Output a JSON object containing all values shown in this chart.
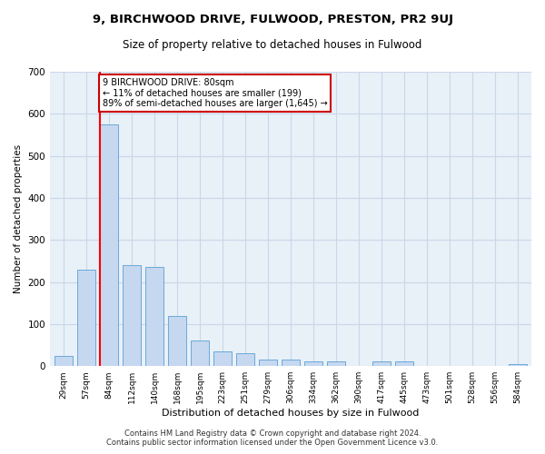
{
  "title": "9, BIRCHWOOD DRIVE, FULWOOD, PRESTON, PR2 9UJ",
  "subtitle": "Size of property relative to detached houses in Fulwood",
  "xlabel": "Distribution of detached houses by size in Fulwood",
  "ylabel": "Number of detached properties",
  "categories": [
    "29sqm",
    "57sqm",
    "84sqm",
    "112sqm",
    "140sqm",
    "168sqm",
    "195sqm",
    "223sqm",
    "251sqm",
    "279sqm",
    "306sqm",
    "334sqm",
    "362sqm",
    "390sqm",
    "417sqm",
    "445sqm",
    "473sqm",
    "501sqm",
    "528sqm",
    "556sqm",
    "584sqm"
  ],
  "values": [
    25,
    230,
    575,
    240,
    235,
    120,
    60,
    35,
    30,
    15,
    15,
    12,
    12,
    0,
    12,
    12,
    0,
    0,
    0,
    0,
    5
  ],
  "bar_color": "#c5d8f0",
  "bar_edge_color": "#5a9fd4",
  "red_line_index": 2,
  "annotation_text": "9 BIRCHWOOD DRIVE: 80sqm\n← 11% of detached houses are smaller (199)\n89% of semi-detached houses are larger (1,645) →",
  "annotation_box_color": "#ffffff",
  "annotation_box_edge": "#cc0000",
  "ylim": [
    0,
    700
  ],
  "yticks": [
    0,
    100,
    200,
    300,
    400,
    500,
    600,
    700
  ],
  "grid_color": "#c8d8e8",
  "background_color": "#e8f0f8",
  "footer_line1": "Contains HM Land Registry data © Crown copyright and database right 2024.",
  "footer_line2": "Contains public sector information licensed under the Open Government Licence v3.0."
}
